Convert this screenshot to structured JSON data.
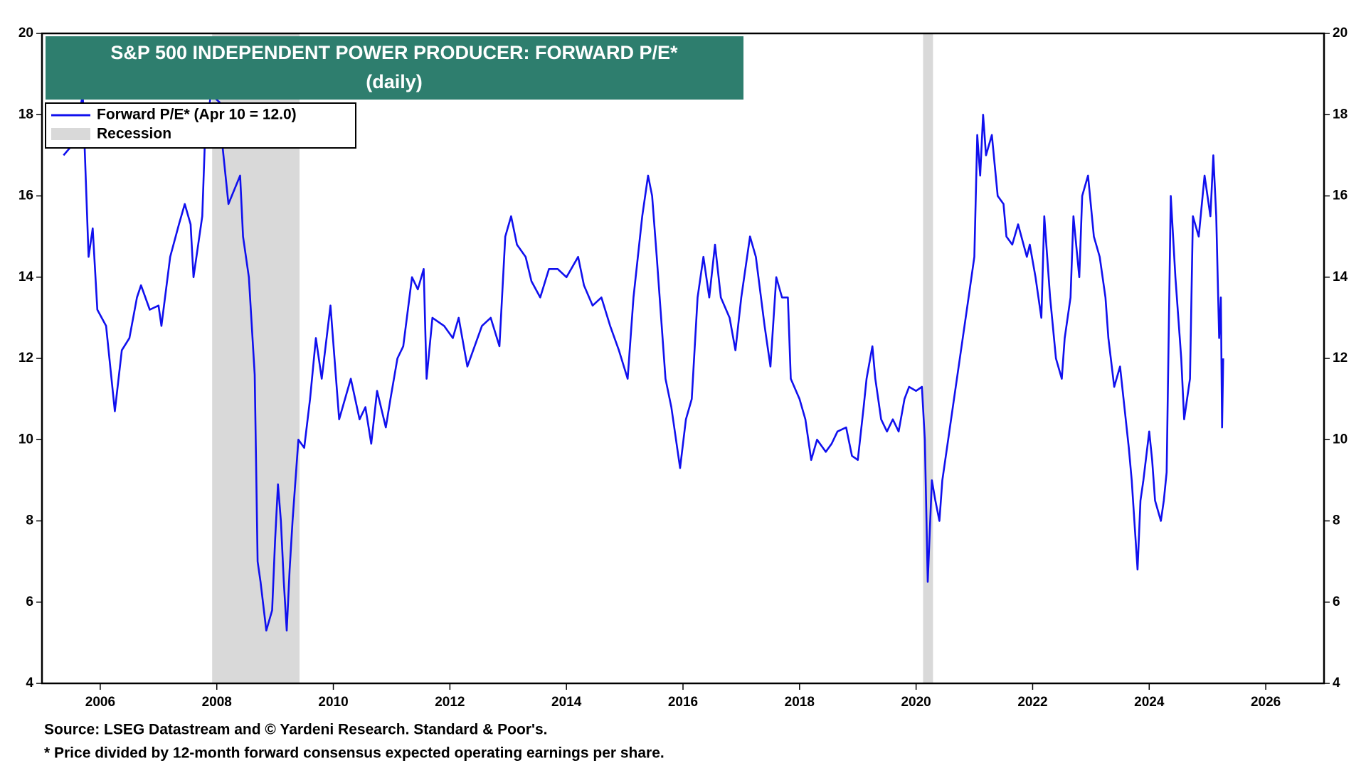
{
  "chart_data": {
    "type": "line",
    "title": "S&P 500 INDEPENDENT POWER PRODUCER: FORWARD P/E*",
    "subtitle": "(daily)",
    "source": "Source: LSEG Datastream and © Yardeni Research. Standard & Poor's.",
    "footnote": "* Price divided by 12-month forward consensus expected operating earnings per share.",
    "xlim": [
      2005,
      2027
    ],
    "xticks": [
      2006,
      2008,
      2010,
      2012,
      2014,
      2016,
      2018,
      2020,
      2022,
      2024,
      2026
    ],
    "ylim": [
      4,
      20
    ],
    "yticks": [
      4,
      6,
      8,
      10,
      12,
      14,
      16,
      18,
      20
    ],
    "recessions": {
      "name": "Recession",
      "color": "#d9d9d9",
      "periods": [
        [
          2007.92,
          2009.42
        ],
        [
          2020.12,
          2020.29
        ]
      ]
    },
    "legend": "top-left",
    "series": [
      {
        "name": "Forward P/E* (Apr 10 = 12.0)",
        "color": "#1010ee",
        "x": [
          2005.37,
          2005.55,
          2005.7,
          2005.8,
          2005.87,
          2005.95,
          2006.1,
          2006.25,
          2006.37,
          2006.5,
          2006.63,
          2006.7,
          2006.85,
          2007.0,
          2007.05,
          2007.2,
          2007.35,
          2007.45,
          2007.55,
          2007.6,
          2007.7,
          2007.75,
          2007.8,
          2007.9,
          2008.05,
          2008.1,
          2008.2,
          2008.4,
          2008.45,
          2008.55,
          2008.65,
          2008.7,
          2008.75,
          2008.85,
          2008.95,
          2009.0,
          2009.05,
          2009.1,
          2009.15,
          2009.2,
          2009.25,
          2009.3,
          2009.4,
          2009.5,
          2009.6,
          2009.7,
          2009.8,
          2009.95,
          2010.1,
          2010.2,
          2010.3,
          2010.45,
          2010.55,
          2010.65,
          2010.75,
          2010.9,
          2010.98,
          2011.1,
          2011.2,
          2011.35,
          2011.45,
          2011.55,
          2011.6,
          2011.7,
          2011.9,
          2012.05,
          2012.15,
          2012.3,
          2012.4,
          2012.55,
          2012.7,
          2012.85,
          2012.95,
          2013.05,
          2013.15,
          2013.3,
          2013.4,
          2013.55,
          2013.7,
          2013.85,
          2014.0,
          2014.2,
          2014.3,
          2014.45,
          2014.6,
          2014.75,
          2014.9,
          2015.05,
          2015.15,
          2015.3,
          2015.4,
          2015.47,
          2015.55,
          2015.7,
          2015.8,
          2015.95,
          2016.05,
          2016.15,
          2016.25,
          2016.35,
          2016.45,
          2016.55,
          2016.65,
          2016.8,
          2016.9,
          2017.0,
          2017.15,
          2017.25,
          2017.4,
          2017.5,
          2017.6,
          2017.7,
          2017.8,
          2017.85,
          2018.0,
          2018.1,
          2018.2,
          2018.3,
          2018.45,
          2018.55,
          2018.65,
          2018.8,
          2018.9,
          2019.0,
          2019.1,
          2019.15,
          2019.25,
          2019.3,
          2019.4,
          2019.5,
          2019.6,
          2019.7,
          2019.8,
          2019.88,
          2020.0,
          2020.1,
          2020.15,
          2020.2,
          2020.27,
          2020.33,
          2020.4,
          2020.45,
          2020.55,
          2020.65,
          2020.75,
          2020.85,
          2020.9,
          2021.0,
          2021.05,
          2021.1,
          2021.15,
          2021.2,
          2021.3,
          2021.4,
          2021.5,
          2021.55,
          2021.65,
          2021.75,
          2021.9,
          2021.95,
          2022.05,
          2022.15,
          2022.2,
          2022.3,
          2022.4,
          2022.5,
          2022.55,
          2022.65,
          2022.7,
          2022.8,
          2022.85,
          2022.95,
          2023.05,
          2023.15,
          2023.25,
          2023.3,
          2023.4,
          2023.5,
          2023.65,
          2023.7,
          2023.8,
          2023.85,
          2023.9,
          2024.0,
          2024.05,
          2024.1,
          2024.2,
          2024.25,
          2024.3,
          2024.37,
          2024.45,
          2024.5,
          2024.55,
          2024.6,
          2024.7,
          2024.75,
          2024.85,
          2024.95,
          2025.05,
          2025.1,
          2025.15,
          2025.2,
          2025.23,
          2025.25,
          2025.27
        ],
        "values": [
          17.0,
          17.3,
          18.5,
          14.5,
          15.2,
          13.2,
          12.8,
          10.7,
          12.2,
          12.5,
          13.5,
          13.8,
          13.2,
          13.3,
          12.8,
          14.5,
          15.3,
          15.8,
          15.3,
          14.0,
          15.0,
          15.5,
          17.5,
          18.5,
          18.3,
          17.2,
          15.8,
          16.5,
          15.0,
          14.0,
          11.6,
          7.0,
          6.5,
          5.3,
          5.8,
          7.5,
          8.9,
          8.0,
          6.5,
          5.3,
          6.8,
          8.0,
          10.0,
          9.8,
          11.0,
          12.5,
          11.5,
          13.3,
          10.5,
          11.0,
          11.5,
          10.5,
          10.8,
          9.9,
          11.2,
          10.3,
          11.0,
          12.0,
          12.3,
          14.0,
          13.7,
          14.2,
          11.5,
          13.0,
          12.8,
          12.5,
          13.0,
          11.8,
          12.2,
          12.8,
          13.0,
          12.3,
          15.0,
          15.5,
          14.8,
          14.5,
          13.9,
          13.5,
          14.2,
          14.2,
          14.0,
          14.5,
          13.8,
          13.3,
          13.5,
          12.8,
          12.2,
          11.5,
          13.5,
          15.5,
          16.5,
          16.0,
          14.5,
          11.5,
          10.8,
          9.3,
          10.5,
          11.0,
          13.5,
          14.5,
          13.5,
          14.8,
          13.5,
          13.0,
          12.2,
          13.5,
          15.0,
          14.5,
          12.8,
          11.8,
          14.0,
          13.5,
          13.5,
          11.5,
          11.0,
          10.5,
          9.5,
          10.0,
          9.7,
          9.9,
          10.2,
          10.3,
          9.6,
          9.5,
          10.8,
          11.5,
          12.3,
          11.5,
          10.5,
          10.2,
          10.5,
          10.2,
          11.0,
          11.3,
          11.2,
          11.3,
          10.0,
          6.5,
          9.0,
          8.5,
          8.0,
          9.0,
          10.0,
          11.0,
          12.0,
          13.0,
          13.5,
          14.5,
          17.5,
          16.5,
          18.0,
          17.0,
          17.5,
          16.0,
          15.8,
          15.0,
          14.8,
          15.3,
          14.5,
          14.8,
          14.0,
          13.0,
          15.5,
          13.5,
          12.0,
          11.5,
          12.5,
          13.5,
          15.5,
          14.0,
          16.0,
          16.5,
          15.0,
          14.5,
          13.5,
          12.5,
          11.3,
          11.8,
          9.8,
          9.0,
          6.8,
          8.5,
          9.0,
          10.2,
          9.5,
          8.5,
          8.0,
          8.5,
          9.2,
          16.0,
          14.0,
          13.0,
          12.0,
          10.5,
          11.5,
          15.5,
          15.0,
          16.5,
          15.5,
          17.0,
          15.5,
          12.5,
          13.5,
          10.3,
          12.0
        ]
      }
    ]
  }
}
